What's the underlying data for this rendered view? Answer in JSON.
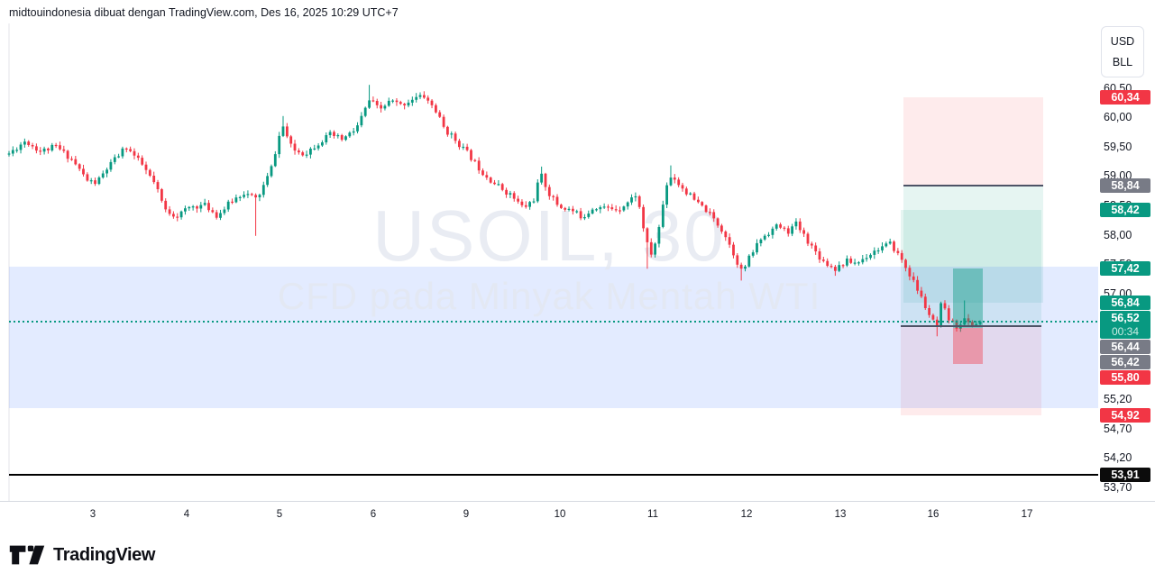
{
  "attribution": "midtouindonesia dibuat dengan TradingView.com, Des 16, 2025 10:29 UTC+7",
  "watermark": {
    "title": "USOIL, 30",
    "subtitle": "CFD pada Minyak Mentah WTI"
  },
  "unit_box": {
    "top": "USD",
    "bottom": "BLL"
  },
  "logo": {
    "text": "TradingView"
  },
  "colors": {
    "up": "#089981",
    "down": "#f23645",
    "badge_green": "#089981",
    "badge_gray": "#787b86",
    "badge_red": "#f23645",
    "badge_black": "#0c0c0c",
    "band_fill": "rgba(41,98,255,0.13)",
    "profit_fill": "rgba(8,153,129,0.10)",
    "stop_fill": "rgba(242,54,69,0.10)",
    "profit_fill_strong": "rgba(8,153,129,0.42)",
    "stop_fill_strong": "rgba(242,54,69,0.40)",
    "entry_line": "#4e5366",
    "dotted_line": "#089981",
    "price_line": "#000000",
    "axis_text": "#131722"
  },
  "price_axis": {
    "ticks": [
      {
        "label": "60,50",
        "price": 60.5
      },
      {
        "label": "60,00",
        "price": 60.0
      },
      {
        "label": "59,50",
        "price": 59.5
      },
      {
        "label": "59,00",
        "price": 59.0
      },
      {
        "label": "58,50",
        "price": 58.5
      },
      {
        "label": "58,00",
        "price": 58.0
      },
      {
        "label": "57,50",
        "price": 57.5
      },
      {
        "label": "57,00",
        "price": 57.0
      },
      {
        "label": "55,20",
        "price": 55.2
      },
      {
        "label": "54,70",
        "price": 54.7
      },
      {
        "label": "54,20",
        "price": 54.2
      },
      {
        "label": "53,70",
        "price": 53.7
      }
    ],
    "badges": [
      {
        "label": "60,34",
        "price": 60.34,
        "color": "red"
      },
      {
        "label": "58,84",
        "price": 58.84,
        "color": "gray"
      },
      {
        "label": "58,42",
        "price": 58.42,
        "color": "green"
      },
      {
        "label": "57,42",
        "price": 57.42,
        "color": "green"
      },
      {
        "label": "56,84",
        "price": 56.84,
        "color": "green"
      },
      {
        "label": "56,52",
        "sub": "00:34",
        "price": 56.52,
        "color": "green"
      },
      {
        "label": "56,44",
        "price": 56.44,
        "color": "gray"
      },
      {
        "label": "56,42",
        "price": 56.42,
        "color": "gray"
      },
      {
        "label": "55,80",
        "price": 55.8,
        "color": "red"
      },
      {
        "label": "54,92",
        "price": 54.92,
        "color": "red"
      },
      {
        "label": "53,91",
        "price": 53.91,
        "color": "black"
      }
    ]
  },
  "time_axis": {
    "labels": [
      {
        "label": "3",
        "x": 103
      },
      {
        "label": "4",
        "x": 207
      },
      {
        "label": "5",
        "x": 310
      },
      {
        "label": "6",
        "x": 414
      },
      {
        "label": "9",
        "x": 517
      },
      {
        "label": "10",
        "x": 621
      },
      {
        "label": "11",
        "x": 724
      },
      {
        "label": "12",
        "x": 828
      },
      {
        "label": "13",
        "x": 932
      },
      {
        "label": "16",
        "x": 1035
      },
      {
        "label": "17",
        "x": 1139
      }
    ]
  },
  "chart_data": {
    "type": "candlestick",
    "symbol": "USOIL",
    "interval": "30",
    "description": "CFD pada Minyak Mentah WTI",
    "title": "USOIL, 30",
    "ylabel": "price (USD/BLL)",
    "ylim": [
      53.5,
      61.0
    ],
    "x_axis_labels": [
      "3",
      "4",
      "5",
      "6",
      "9",
      "10",
      "11",
      "12",
      "13",
      "16",
      "17"
    ],
    "y_axis_ticks": [
      "60,50",
      "60,00",
      "59,50",
      "59,00",
      "58,50",
      "58,00",
      "57,50",
      "57,00",
      "55,20",
      "54,70",
      "54,20",
      "53,70"
    ],
    "grid": false,
    "last_price": 56.52,
    "countdown": "00:34",
    "price_line_black": 53.91,
    "highlight_band": {
      "top_price": 57.45,
      "bottom_price": 55.05
    },
    "positions": [
      {
        "side": "short",
        "entry": 58.84,
        "stop": 60.34,
        "target": 56.84,
        "width": "wide"
      },
      {
        "side": "long",
        "entry": 56.44,
        "target": 58.42,
        "stop": 54.92,
        "width": "wide"
      },
      {
        "side": "long",
        "entry": 56.42,
        "target": 57.42,
        "stop": 55.8,
        "width": "narrow"
      }
    ],
    "price_path": [
      [
        10,
        59.38
      ],
      [
        28,
        59.6
      ],
      [
        45,
        59.42
      ],
      [
        62,
        59.5
      ],
      [
        80,
        59.28
      ],
      [
        97,
        58.92
      ],
      [
        107,
        58.88
      ],
      [
        120,
        59.15
      ],
      [
        140,
        59.5
      ],
      [
        158,
        59.18
      ],
      [
        172,
        58.85
      ],
      [
        183,
        58.42
      ],
      [
        196,
        58.32
      ],
      [
        212,
        58.48
      ],
      [
        228,
        58.5
      ],
      [
        241,
        58.32
      ],
      [
        256,
        58.56
      ],
      [
        270,
        58.72
      ],
      [
        285,
        58.6
      ],
      [
        300,
        59.08
      ],
      [
        313,
        59.88
      ],
      [
        324,
        59.45
      ],
      [
        338,
        59.38
      ],
      [
        352,
        59.55
      ],
      [
        366,
        59.7
      ],
      [
        380,
        59.62
      ],
      [
        395,
        59.8
      ],
      [
        410,
        60.3
      ],
      [
        421,
        60.12
      ],
      [
        433,
        60.28
      ],
      [
        445,
        60.2
      ],
      [
        458,
        60.32
      ],
      [
        470,
        60.36
      ],
      [
        482,
        60.15
      ],
      [
        493,
        59.8
      ],
      [
        506,
        59.6
      ],
      [
        519,
        59.38
      ],
      [
        533,
        59.1
      ],
      [
        548,
        58.88
      ],
      [
        566,
        58.68
      ],
      [
        581,
        58.45
      ],
      [
        593,
        58.62
      ],
      [
        599,
        59.05
      ],
      [
        609,
        58.7
      ],
      [
        620,
        58.48
      ],
      [
        633,
        58.42
      ],
      [
        646,
        58.3
      ],
      [
        659,
        58.48
      ],
      [
        673,
        58.45
      ],
      [
        686,
        58.44
      ],
      [
        697,
        58.56
      ],
      [
        706,
        58.7
      ],
      [
        715,
        58.02
      ],
      [
        721,
        57.62
      ],
      [
        729,
        57.95
      ],
      [
        739,
        58.85
      ],
      [
        745,
        59.02
      ],
      [
        753,
        58.86
      ],
      [
        763,
        58.7
      ],
      [
        773,
        58.54
      ],
      [
        783,
        58.42
      ],
      [
        793,
        58.24
      ],
      [
        803,
        58.04
      ],
      [
        813,
        57.7
      ],
      [
        823,
        57.36
      ],
      [
        833,
        57.66
      ],
      [
        843,
        57.92
      ],
      [
        853,
        58.05
      ],
      [
        863,
        58.16
      ],
      [
        873,
        58.04
      ],
      [
        883,
        58.18
      ],
      [
        893,
        57.96
      ],
      [
        903,
        57.74
      ],
      [
        913,
        57.55
      ],
      [
        926,
        57.42
      ],
      [
        939,
        57.55
      ],
      [
        951,
        57.52
      ],
      [
        963,
        57.66
      ],
      [
        976,
        57.78
      ],
      [
        988,
        57.84
      ],
      [
        999,
        57.6
      ],
      [
        1009,
        57.32
      ],
      [
        1019,
        57.02
      ],
      [
        1029,
        56.68
      ],
      [
        1039,
        56.4
      ],
      [
        1044,
        56.82
      ],
      [
        1053,
        56.54
      ],
      [
        1061,
        56.44
      ],
      [
        1069,
        56.56
      ],
      [
        1077,
        56.46
      ],
      [
        1088,
        56.52
      ]
    ],
    "wick_extremes": [
      [
        285,
        57.98,
        "low"
      ],
      [
        313,
        60.02,
        "high"
      ],
      [
        409,
        60.55,
        "high"
      ],
      [
        470,
        60.42,
        "high"
      ],
      [
        599,
        59.16,
        "high"
      ],
      [
        720,
        57.42,
        "low"
      ],
      [
        744,
        59.18,
        "high"
      ],
      [
        822,
        57.22,
        "low"
      ],
      [
        882,
        58.28,
        "high"
      ],
      [
        925,
        57.3,
        "low"
      ],
      [
        1040,
        56.27,
        "low"
      ],
      [
        1070,
        56.88,
        "high"
      ]
    ]
  }
}
